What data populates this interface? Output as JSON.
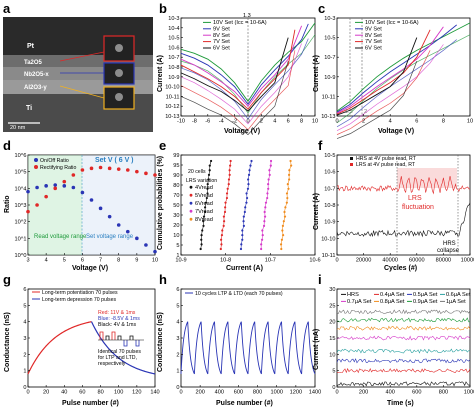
{
  "panels": {
    "a": {
      "label": "a",
      "layers": [
        "Pt",
        "Ta2O5",
        "Nb2O5-x",
        "Al2O3-y",
        "Ti"
      ],
      "scale": "20 nm"
    },
    "b": {
      "label": "b",
      "marker": "1.3",
      "xlabel": "Voltage (V)",
      "ylabel": "Current (A)",
      "xticks": [
        "-10",
        "-8",
        "-6",
        "-4",
        "-2",
        "0",
        "2",
        "4",
        "6",
        "8",
        "10"
      ],
      "yticks": [
        "10-3",
        "10-4",
        "10-5",
        "10-6",
        "10-7",
        "10-8",
        "10-9",
        "10-10",
        "10-11",
        "10-12",
        "10-13"
      ],
      "legend": [
        "10V Set (Icc = 10-6A)",
        "9V Set",
        "8V Set",
        "7V Set",
        "6V Set"
      ]
    },
    "c": {
      "label": "c",
      "xlabel": "Voltage (V)",
      "ylabel": "Current (A)",
      "xticks": [
        "0",
        "2",
        "4",
        "6",
        "8",
        "10"
      ],
      "extra_ticks": [
        "1.3",
        "2"
      ],
      "yticks": [
        "10-3",
        "10-5",
        "10-7",
        "10-9",
        "10-11",
        "10-13"
      ],
      "legend": [
        "10V Set (Icc = 10-6A)",
        "9V Set",
        "8V Set",
        "7V Set",
        "6V Set"
      ]
    },
    "d": {
      "label": "d",
      "xlabel": "Voltage (V)",
      "ylabel": "Ratio",
      "xticks": [
        "3",
        "4",
        "5",
        "6",
        "7",
        "8",
        "9",
        "10"
      ],
      "yticks": [
        "10^6",
        "10^5",
        "10^4",
        "10^3",
        "10^2",
        "10^1",
        "10^0"
      ],
      "legend": [
        "On/Off Ratio",
        "Rectifying Ratio"
      ],
      "annot_set": "Set V ( 6 V )",
      "annot_read": "Read voltage range",
      "annot_setrange": "Set voltage range"
    },
    "e": {
      "label": "e",
      "xlabel": "Current (A)",
      "ylabel": "Cumulative probabilities (%)",
      "xticks": [
        "10-9",
        "10-8",
        "10-7",
        "10-6"
      ],
      "yticks": [
        "99",
        "95",
        "90",
        "80",
        "70",
        "50",
        "30",
        "20",
        "10",
        "5",
        "1"
      ],
      "legend_title": "20 cells",
      "legend_sub": "LRS variation",
      "legend": [
        "4Vread",
        "5Vread",
        "6Vread",
        "7Vread",
        "8Vread"
      ]
    },
    "f": {
      "label": "f",
      "xlabel": "Cycles (#)",
      "ylabel": "Current (A)",
      "xticks": [
        "0",
        "20000",
        "40000",
        "60000",
        "80000",
        "100000"
      ],
      "yticks": [
        "10-5",
        "10-6",
        "10-7",
        "10-8",
        "10-9",
        "10-10",
        "10-11"
      ],
      "legend": [
        "HRS at 4V pulse read, RT",
        "LRS at 4V pulse read, RT"
      ],
      "annot_lrs": "LRS fluctuation",
      "annot_hrs": "HRS collapse"
    },
    "g": {
      "label": "g",
      "xlabel": "Pulse number (#)",
      "ylabel": "Conductance (nS)",
      "xticks": [
        "0",
        "20",
        "40",
        "60",
        "80",
        "100",
        "120",
        "140"
      ],
      "yticks": [
        "0",
        "1",
        "2",
        "3",
        "4",
        "5",
        "6"
      ],
      "legend": [
        "Long-term potentiation 70 pulses",
        "Long-term depression 70 pulses"
      ],
      "pulse_red": "Red: 11V & 1ms",
      "pulse_blue": "Blue: -8.5V & 1ms",
      "pulse_black": "Black: 4V & 1ms",
      "note1": "Identical 70 pulses",
      "note2": "for LTP and LTD,",
      "note3": "respectively"
    },
    "h": {
      "label": "h",
      "xlabel": "Pulse number (#)",
      "ylabel": "Conductance (nS)",
      "xticks": [
        "0",
        "200",
        "400",
        "600",
        "800",
        "1000",
        "1200",
        "1400"
      ],
      "yticks": [
        "0",
        "1",
        "2",
        "3",
        "4",
        "5",
        "6"
      ],
      "legend": [
        "10 cycles LTP & LTD (each 70 pulses)"
      ]
    },
    "i": {
      "label": "i",
      "xlabel": "Time (s)",
      "ylabel": "Current (nA)",
      "xticks": [
        "0",
        "200",
        "400",
        "600",
        "800",
        "1000"
      ],
      "yticks": [
        "0",
        "5",
        "10",
        "15",
        "20",
        "25",
        "30"
      ],
      "legend": [
        "HRS",
        "0.4µA Set",
        "0.5µA Set",
        "0.6µA Set",
        "0.7µA Set",
        "0.8µA Set",
        "0.9µA Set",
        "1µA Set"
      ]
    }
  },
  "colors": {
    "black": "#111111",
    "blue": "#2a35b5",
    "green": "#1e9a3a",
    "red": "#e02828",
    "orange": "#f08c1e",
    "magenta": "#d63ac9",
    "purple": "#8e2fc0",
    "cyan": "#19b3c8",
    "gray": "#777777",
    "teal": "#2aa0a0"
  },
  "chart_data": [
    {
      "panel": "b",
      "type": "line",
      "x_range": [
        -10,
        10
      ],
      "ylim_log10": [
        -13,
        -3
      ],
      "series": [
        {
          "color": "green",
          "x": [
            -10,
            -8,
            -6,
            -4,
            -2,
            0,
            2,
            4,
            6,
            8,
            10
          ],
          "logy": [
            -6.2,
            -6.6,
            -7.2,
            -8.2,
            -9.6,
            -11.5,
            -9.4,
            -7.8,
            -6.5,
            -5.4,
            -3.5
          ]
        },
        {
          "color": "blue",
          "x": [
            -10,
            -8,
            -6,
            -4,
            -2,
            0,
            2,
            4,
            6,
            8,
            9
          ],
          "logy": [
            -6.6,
            -7.1,
            -7.8,
            -8.8,
            -10,
            -11.8,
            -9.8,
            -8.3,
            -6.9,
            -5.2,
            -3.6
          ]
        },
        {
          "color": "magenta",
          "x": [
            -10,
            -8,
            -6,
            -4,
            -2,
            0,
            2,
            4,
            6,
            8
          ],
          "logy": [
            -7.2,
            -7.8,
            -8.6,
            -9.5,
            -10.5,
            -12,
            -10.2,
            -8.8,
            -7.2,
            -3.8
          ]
        },
        {
          "color": "red",
          "x": [
            -10,
            -8,
            -6,
            -4,
            -2,
            0,
            2,
            4,
            6,
            7
          ],
          "logy": [
            -7.8,
            -8.5,
            -9.2,
            -10,
            -11,
            -12.3,
            -10.6,
            -9.2,
            -7.8,
            -4.2
          ]
        },
        {
          "color": "black",
          "x": [
            -10,
            -8,
            -6,
            -4,
            -2,
            0,
            2,
            4,
            6
          ],
          "logy": [
            -8.6,
            -9.2,
            -9.9,
            -10.5,
            -11.4,
            -12.5,
            -11,
            -9.6,
            -5.0
          ]
        }
      ]
    },
    {
      "panel": "c",
      "type": "line",
      "x_range": [
        0,
        10
      ],
      "ylim_log10": [
        -13,
        -3
      ],
      "series": [
        {
          "color": "green",
          "x": [
            0,
            1,
            2,
            3,
            4,
            5,
            6,
            7,
            8,
            9,
            10
          ],
          "logy": [
            -12.5,
            -11.5,
            -10.2,
            -9,
            -8,
            -7.1,
            -6.3,
            -5.6,
            -4.9,
            -4.2,
            -3.5
          ]
        },
        {
          "color": "blue",
          "x": [
            0,
            1,
            2,
            3,
            4,
            5,
            6,
            7,
            8,
            9
          ],
          "logy": [
            -12.6,
            -11.8,
            -10.6,
            -9.5,
            -8.5,
            -7.6,
            -6.7,
            -5.8,
            -4.8,
            -3.7
          ]
        },
        {
          "color": "magenta",
          "x": [
            0,
            1,
            2,
            3,
            4,
            5,
            6,
            7,
            8
          ],
          "logy": [
            -12.7,
            -12,
            -11,
            -10,
            -9.1,
            -8.2,
            -7.2,
            -5.8,
            -3.9
          ]
        },
        {
          "color": "red",
          "x": [
            0,
            1,
            2,
            3,
            4,
            5,
            6,
            7
          ],
          "logy": [
            -12.8,
            -12.2,
            -11.3,
            -10.4,
            -9.6,
            -8.6,
            -7,
            -4.2
          ]
        },
        {
          "color": "black",
          "x": [
            0,
            1,
            2,
            3,
            4,
            5,
            6
          ],
          "logy": [
            -12.9,
            -12.4,
            -11.6,
            -10.8,
            -10,
            -8.5,
            -5.0
          ]
        }
      ]
    },
    {
      "panel": "d",
      "type": "scatter",
      "x_range": [
        3,
        10
      ],
      "ylim_log10": [
        0,
        6
      ],
      "series": [
        {
          "name": "On/Off Ratio",
          "color": "blue",
          "x": [
            3,
            3.5,
            4,
            4.5,
            5,
            5.5,
            6,
            6.5,
            7,
            7.5,
            8,
            8.5,
            9,
            9.5,
            10
          ],
          "logy": [
            3.8,
            4.05,
            4.15,
            4.2,
            4.15,
            4.05,
            3.75,
            3.3,
            2.8,
            2.3,
            1.8,
            1.4,
            1.0,
            0.6,
            0.2
          ]
        },
        {
          "name": "Rectifying Ratio",
          "color": "red",
          "x": [
            3,
            3.5,
            4,
            4.5,
            5,
            5.5,
            6,
            6.5,
            7,
            7.5,
            8,
            8.5,
            9,
            9.5,
            10
          ],
          "logy": [
            2.6,
            3.0,
            3.5,
            4.0,
            4.4,
            4.8,
            5.1,
            5.2,
            5.25,
            5.2,
            5.15,
            5.1,
            5.0,
            4.9,
            4.8
          ]
        }
      ]
    },
    {
      "panel": "e",
      "type": "scatter",
      "x_range_log10": [
        -9,
        -6
      ],
      "series": [
        {
          "name": "4Vread",
          "color": "black",
          "log_center": -8.45
        },
        {
          "name": "5Vread",
          "color": "red",
          "log_center": -8.0
        },
        {
          "name": "6Vread",
          "color": "blue",
          "log_center": -7.55
        },
        {
          "name": "7Vread",
          "color": "magenta",
          "log_center": -7.1
        },
        {
          "name": "8Vread",
          "color": "orange",
          "log_center": -6.65
        }
      ]
    },
    {
      "panel": "f",
      "type": "line",
      "x_range": [
        0,
        100000
      ],
      "ylim_log10": [
        -11,
        -5
      ],
      "series": [
        {
          "name": "HRS at 4V pulse read, RT",
          "color": "black",
          "logy_mean": -9.7
        },
        {
          "name": "LRS at 4V pulse read, RT",
          "color": "red",
          "logy_mean": -7.0
        }
      ]
    },
    {
      "panel": "g",
      "type": "line",
      "x_range": [
        0,
        140
      ],
      "ylim": [
        0,
        6
      ],
      "series": [
        {
          "name": "Long-term potentiation 70 pulses",
          "color": "red",
          "x_start": 0,
          "x_end": 70,
          "y_start": 0.8,
          "y_end": 4.0
        },
        {
          "name": "Long-term depression 70 pulses",
          "color": "blue",
          "x_start": 70,
          "x_end": 140,
          "y_start": 4.0,
          "y_end": 0.8
        }
      ]
    },
    {
      "panel": "h",
      "type": "line",
      "x_range": [
        0,
        1400
      ],
      "ylim": [
        0,
        6
      ],
      "series": [
        {
          "name": "10 cycles LTP & LTD (each 70 pulses)",
          "color": "blue",
          "cycles": 10,
          "low": 0.8,
          "high": 4.0
        }
      ]
    },
    {
      "panel": "i",
      "type": "line",
      "x_range": [
        0,
        1000
      ],
      "ylim": [
        0,
        30
      ],
      "series": [
        {
          "name": "HRS",
          "color": "black",
          "y": 1
        },
        {
          "name": "0.4µA Set",
          "color": "red",
          "y": 5
        },
        {
          "name": "0.5µA Set",
          "color": "blue",
          "y": 8
        },
        {
          "name": "0.6µA Set",
          "color": "teal",
          "y": 11
        },
        {
          "name": "0.7µA Set",
          "color": "magenta",
          "y": 15
        },
        {
          "name": "0.8µA Set",
          "color": "orange",
          "y": 18
        },
        {
          "name": "0.9µA Set",
          "color": "green",
          "y": 20.5
        },
        {
          "name": "1µA Set",
          "color": "gray",
          "y": 23
        }
      ]
    }
  ]
}
